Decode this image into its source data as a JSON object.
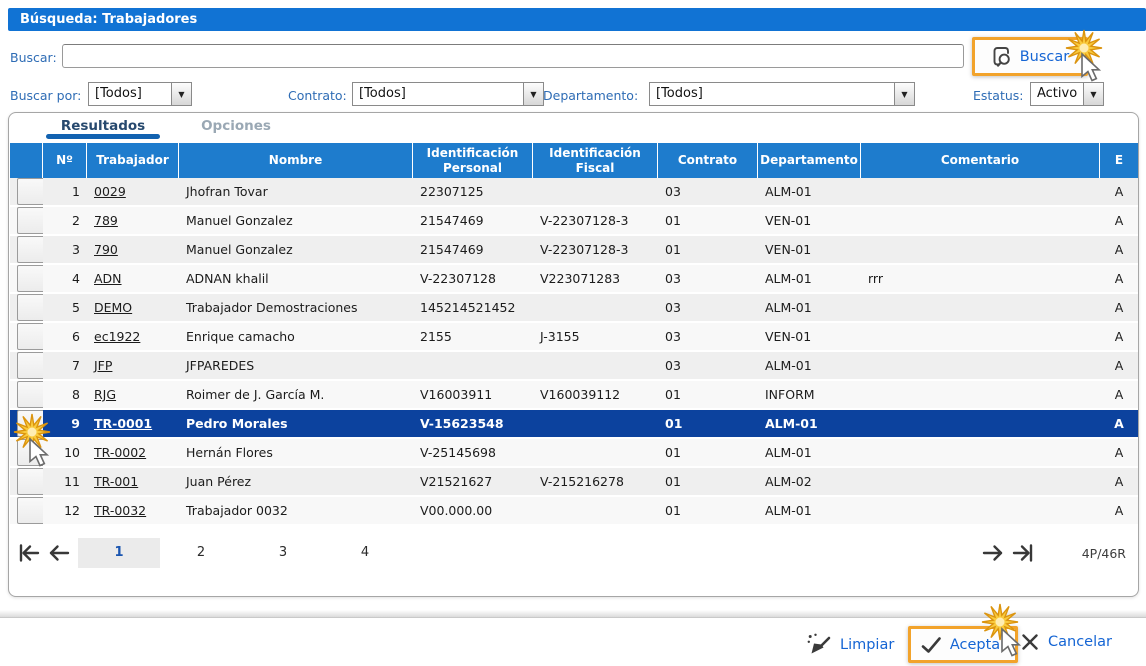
{
  "window": {
    "title": "Búsqueda: Trabajadores"
  },
  "search": {
    "label": "Buscar:",
    "value": "",
    "button_label": "Buscar"
  },
  "filters": [
    {
      "label": "Buscar por:",
      "value": "[Todos]"
    },
    {
      "label": "Contrato:",
      "value": "[Todos]"
    },
    {
      "label": "Departamento:",
      "value": "[Todos]"
    },
    {
      "label": "Estatus:",
      "value": "Activo"
    }
  ],
  "icons": {
    "dropdown_arrow": "▼"
  },
  "tabs": {
    "results": "Resultados",
    "options": "Opciones",
    "active": "Resultados"
  },
  "table": {
    "headers": [
      "",
      "Nº",
      "Trabajador",
      "Nombre",
      "Identificación Personal",
      "Identificación Fiscal",
      "Contrato",
      "Departamento",
      "Comentario",
      "E"
    ],
    "rows": [
      [
        "1",
        "0029",
        "Jhofran Tovar",
        "22307125",
        "",
        "03",
        "ALM-01",
        "",
        "A"
      ],
      [
        "2",
        "789",
        "Manuel Gonzalez",
        "21547469",
        "V-22307128-3",
        "01",
        "VEN-01",
        "",
        "A"
      ],
      [
        "3",
        "790",
        "Manuel Gonzalez",
        "21547469",
        "V-22307128-3",
        "01",
        "VEN-01",
        "",
        "A"
      ],
      [
        "4",
        "ADN",
        "ADNAN khalil",
        "V-22307128",
        "V223071283",
        "03",
        "ALM-01",
        "rrr",
        "A"
      ],
      [
        "5",
        "DEMO",
        "Trabajador Demostraciones",
        "145214521452",
        "",
        "03",
        "ALM-01",
        "",
        "A"
      ],
      [
        "6",
        "ec1922",
        "Enrique camacho",
        "2155",
        "J-3155",
        "03",
        "VEN-01",
        "",
        "A"
      ],
      [
        "7",
        "JFP",
        "JFPAREDES",
        "",
        "",
        "03",
        "ALM-01",
        "",
        "A"
      ],
      [
        "8",
        "RJG",
        "Roimer de J. García M.",
        "V16003911",
        "V160039112",
        "01",
        "INFORM",
        "",
        "A"
      ],
      [
        "9",
        "TR-0001",
        "Pedro Morales",
        "V-15623548",
        "",
        "01",
        "ALM-01",
        "",
        "A"
      ],
      [
        "10",
        "TR-0002",
        "Hernán Flores",
        "V-25145698",
        "",
        "01",
        "ALM-01",
        "",
        "A"
      ],
      [
        "11",
        "TR-001",
        "Juan Pérez",
        "V21521627",
        "V-215216278",
        "01",
        "ALM-02",
        "",
        "A"
      ],
      [
        "12",
        "TR-0032",
        "Trabajador 0032",
        "V00.000.00",
        "",
        "01",
        "ALM-01",
        "",
        "A"
      ]
    ],
    "selected_row_index": 8
  },
  "pagination": {
    "pages": [
      "1",
      "2",
      "3",
      "4"
    ],
    "active_page": "1",
    "summary": "4P/46R"
  },
  "footer": {
    "clear_label": "Limpiar",
    "accept_label": "Aceptar",
    "cancel_label": "Cancelar"
  },
  "annotations": {
    "click_markers": [
      "search-button",
      "row-9-checkbox",
      "accept-button"
    ]
  },
  "colors": {
    "titlebar_blue": "#1173D4",
    "table_header_blue": "#1E7CCD",
    "selected_row_blue": "#0C429E",
    "link_blue": "#1565D4",
    "label_blue": "#2E6CB5",
    "highlight_orange": "#F2A32B",
    "star_gold": "#F9CB3E"
  }
}
